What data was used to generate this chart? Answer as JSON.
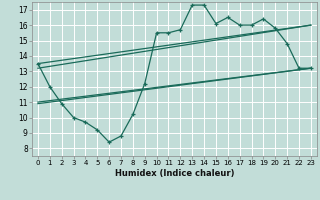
{
  "xlabel": "Humidex (Indice chaleur)",
  "bg_color": "#c2ddd8",
  "grid_color": "#ffffff",
  "line_color": "#1a6b5a",
  "xlim": [
    -0.5,
    23.5
  ],
  "ylim": [
    7.5,
    17.5
  ],
  "xticks": [
    0,
    1,
    2,
    3,
    4,
    5,
    6,
    7,
    8,
    9,
    10,
    11,
    12,
    13,
    14,
    15,
    16,
    17,
    18,
    19,
    20,
    21,
    22,
    23
  ],
  "yticks": [
    8,
    9,
    10,
    11,
    12,
    13,
    14,
    15,
    16,
    17
  ],
  "main_x": [
    0,
    1,
    2,
    3,
    4,
    5,
    6,
    7,
    8,
    9,
    10,
    11,
    12,
    13,
    14,
    15,
    16,
    17,
    18,
    19,
    20,
    21,
    22,
    23
  ],
  "main_y": [
    13.5,
    12.0,
    10.9,
    10.0,
    9.7,
    9.2,
    8.4,
    8.8,
    10.2,
    12.2,
    15.5,
    15.5,
    15.7,
    17.3,
    17.3,
    16.1,
    16.5,
    16.0,
    16.0,
    16.4,
    15.8,
    14.8,
    13.2,
    13.2
  ],
  "env_line1_x": [
    0,
    23
  ],
  "env_line1_y": [
    13.5,
    16.0
  ],
  "env_line2_x": [
    0,
    23
  ],
  "env_line2_y": [
    13.2,
    16.0
  ],
  "env_line3_x": [
    0,
    23
  ],
  "env_line3_y": [
    11.0,
    13.2
  ],
  "env_line4_x": [
    0,
    23
  ],
  "env_line4_y": [
    10.9,
    13.2
  ]
}
